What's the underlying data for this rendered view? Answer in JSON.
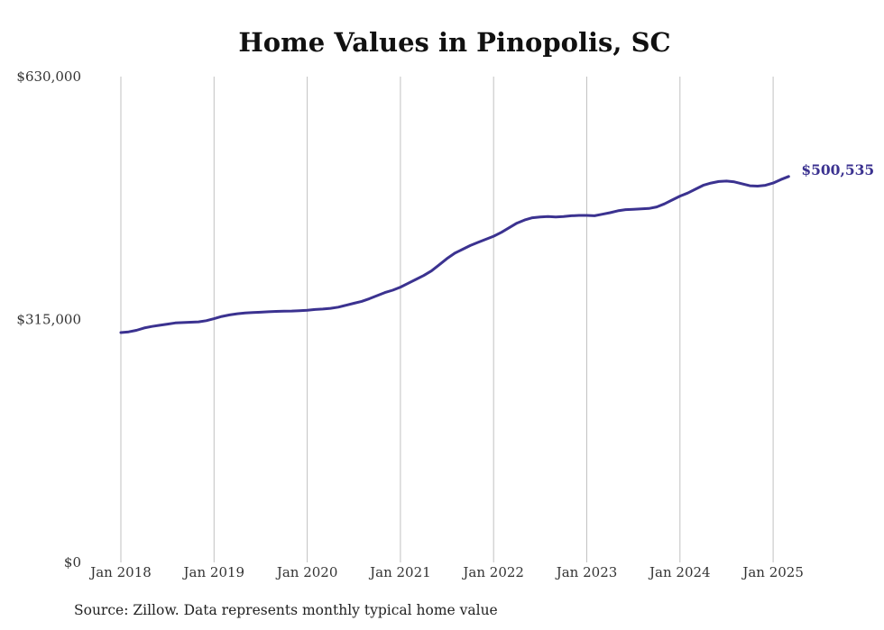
{
  "chart_data": {
    "type": "line",
    "title": "Home Values in Pinopolis, SC",
    "source_note": "Source: Zillow. Data represents monthly typical home value",
    "end_label": "$500,535",
    "line_color": "#3b3290",
    "grid_color": "#c2c2c2",
    "grid": "vertical",
    "ylim": [
      0,
      630000
    ],
    "y_ticks": [
      {
        "value": 0,
        "label": "$0"
      },
      {
        "value": 315000,
        "label": "$315,000"
      },
      {
        "value": 630000,
        "label": "$630,000"
      }
    ],
    "x_ticks": [
      {
        "value": "2018-01",
        "label": "Jan 2018"
      },
      {
        "value": "2019-01",
        "label": "Jan 2019"
      },
      {
        "value": "2020-01",
        "label": "Jan 2020"
      },
      {
        "value": "2021-01",
        "label": "Jan 2021"
      },
      {
        "value": "2022-01",
        "label": "Jan 2022"
      },
      {
        "value": "2023-01",
        "label": "Jan 2023"
      },
      {
        "value": "2024-01",
        "label": "Jan 2024"
      },
      {
        "value": "2025-01",
        "label": "Jan 2025"
      }
    ],
    "series": [
      {
        "points": [
          [
            "2018-01",
            298000
          ],
          [
            "2018-02",
            299000
          ],
          [
            "2018-03",
            301000
          ],
          [
            "2018-04",
            304000
          ],
          [
            "2018-05",
            306000
          ],
          [
            "2018-06",
            307500
          ],
          [
            "2018-07",
            309000
          ],
          [
            "2018-08",
            310500
          ],
          [
            "2018-09",
            311000
          ],
          [
            "2018-10",
            311500
          ],
          [
            "2018-11",
            312000
          ],
          [
            "2018-12",
            313500
          ],
          [
            "2019-01",
            316000
          ],
          [
            "2019-02",
            319000
          ],
          [
            "2019-03",
            321000
          ],
          [
            "2019-04",
            322500
          ],
          [
            "2019-05",
            323500
          ],
          [
            "2019-06",
            324000
          ],
          [
            "2019-07",
            324500
          ],
          [
            "2019-08",
            325000
          ],
          [
            "2019-09",
            325500
          ],
          [
            "2019-10",
            325800
          ],
          [
            "2019-11",
            326000
          ],
          [
            "2019-12",
            326500
          ],
          [
            "2020-01",
            327000
          ],
          [
            "2020-02",
            328000
          ],
          [
            "2020-03",
            328500
          ],
          [
            "2020-04",
            329500
          ],
          [
            "2020-05",
            331000
          ],
          [
            "2020-06",
            333500
          ],
          [
            "2020-07",
            336000
          ],
          [
            "2020-08",
            338500
          ],
          [
            "2020-09",
            342000
          ],
          [
            "2020-10",
            346000
          ],
          [
            "2020-11",
            350000
          ],
          [
            "2020-12",
            353000
          ],
          [
            "2021-01",
            357000
          ],
          [
            "2021-02",
            362000
          ],
          [
            "2021-03",
            367000
          ],
          [
            "2021-04",
            372000
          ],
          [
            "2021-05",
            378000
          ],
          [
            "2021-06",
            386000
          ],
          [
            "2021-07",
            394000
          ],
          [
            "2021-08",
            401000
          ],
          [
            "2021-09",
            406000
          ],
          [
            "2021-10",
            411000
          ],
          [
            "2021-11",
            415000
          ],
          [
            "2021-12",
            419000
          ],
          [
            "2022-01",
            423000
          ],
          [
            "2022-02",
            428000
          ],
          [
            "2022-03",
            434000
          ],
          [
            "2022-04",
            440000
          ],
          [
            "2022-05",
            444000
          ],
          [
            "2022-06",
            447000
          ],
          [
            "2022-07",
            448000
          ],
          [
            "2022-08",
            448500
          ],
          [
            "2022-09",
            448000
          ],
          [
            "2022-10",
            448500
          ],
          [
            "2022-11",
            449500
          ],
          [
            "2022-12",
            450000
          ],
          [
            "2023-01",
            450000
          ],
          [
            "2023-02",
            449500
          ],
          [
            "2023-03",
            451500
          ],
          [
            "2023-04",
            453500
          ],
          [
            "2023-05",
            456000
          ],
          [
            "2023-06",
            457500
          ],
          [
            "2023-07",
            458000
          ],
          [
            "2023-08",
            458500
          ],
          [
            "2023-09",
            459000
          ],
          [
            "2023-10",
            461000
          ],
          [
            "2023-11",
            465000
          ],
          [
            "2023-12",
            470000
          ],
          [
            "2024-01",
            475000
          ],
          [
            "2024-02",
            479000
          ],
          [
            "2024-03",
            484000
          ],
          [
            "2024-04",
            489000
          ],
          [
            "2024-05",
            492000
          ],
          [
            "2024-06",
            494000
          ],
          [
            "2024-07",
            494500
          ],
          [
            "2024-08",
            493500
          ],
          [
            "2024-09",
            491000
          ],
          [
            "2024-10",
            488500
          ],
          [
            "2024-11",
            488000
          ],
          [
            "2024-12",
            489000
          ],
          [
            "2025-01",
            492000
          ],
          [
            "2025-02",
            496500
          ],
          [
            "2025-03",
            500535
          ]
        ]
      }
    ]
  }
}
